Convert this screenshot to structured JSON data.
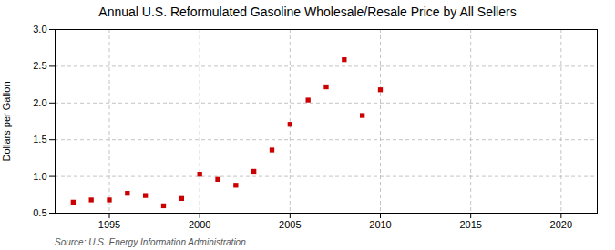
{
  "chart_data": {
    "type": "scatter",
    "title": "Annual U.S. Reformulated Gasoline Wholesale/Resale Price by All Sellers",
    "ylabel": "Dollars per Gallon",
    "source": "Source: U.S. Energy Information Administration",
    "x": [
      1993,
      1994,
      1995,
      1996,
      1997,
      1998,
      1999,
      2000,
      2001,
      2002,
      2003,
      2004,
      2005,
      2006,
      2007,
      2008,
      2009,
      2010
    ],
    "values": [
      0.65,
      0.68,
      0.68,
      0.77,
      0.74,
      0.6,
      0.7,
      1.03,
      0.96,
      0.88,
      1.07,
      1.36,
      1.71,
      2.04,
      2.22,
      2.59,
      1.83,
      2.18
    ],
    "color": "#cc0000",
    "marker": "square",
    "xlim": [
      1992,
      2022
    ],
    "ylim": [
      0.5,
      3.0
    ],
    "xticks": [
      1995,
      2000,
      2005,
      2010,
      2015,
      2020
    ],
    "yticks": [
      0.5,
      {
        "value": 1.0,
        "label": "1.0"
      },
      1.5,
      {
        "value": 2.0,
        "label": "2.0"
      },
      2.5,
      {
        "value": 3.0,
        "label": "3.0"
      }
    ],
    "grid": true
  }
}
